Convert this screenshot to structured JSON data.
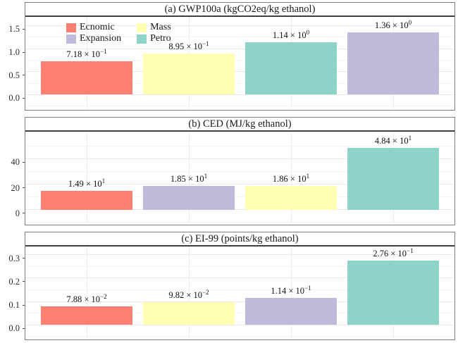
{
  "figure": {
    "background": "#ffffff",
    "panel_border_color": "#7e7e7e",
    "strip_rule_color": "#3f3f3f",
    "grid_major_color": "#e9e9e9",
    "grid_minor_color": "#f4f4f4",
    "text_color": "#1a1a1a"
  },
  "legend": {
    "position": "top-left-inside-panel-a",
    "items": [
      {
        "label": "Ecnomic",
        "color": "#FB8072"
      },
      {
        "label": "Expansion",
        "color": "#BEBADA"
      },
      {
        "label": "Mass",
        "color": "#FFFFB3"
      },
      {
        "label": "Petro",
        "color": "#8DD3C7"
      }
    ]
  },
  "chart_data": [
    {
      "type": "bar",
      "title": "(a) GWP100a (kgCO2eq/kg ethanol)",
      "ylabel": "",
      "xlabel": "",
      "grid": true,
      "legend_visible": true,
      "ylim": [
        -0.3,
        1.69
      ],
      "yticks": [
        0.0,
        0.5,
        1.0,
        1.5
      ],
      "ytick_labels": [
        "0.0",
        "0.5",
        "1.0",
        "1.5"
      ],
      "bars": [
        {
          "name": "Ecnomic",
          "value": 0.718,
          "color": "#FB8072",
          "label_mantissa": "7.18",
          "label_exp": "−1"
        },
        {
          "name": "Mass",
          "value": 0.895,
          "color": "#FFFFB3",
          "label_mantissa": "8.95",
          "label_exp": "−1"
        },
        {
          "name": "Petro",
          "value": 1.14,
          "color": "#8DD3C7",
          "label_mantissa": "1.14",
          "label_exp": "0"
        },
        {
          "name": "Expansion",
          "value": 1.36,
          "color": "#BEBADA",
          "label_mantissa": "1.36",
          "label_exp": "0"
        }
      ]
    },
    {
      "type": "bar",
      "title": "(b) CED (MJ/kg ethanol)",
      "ylabel": "",
      "xlabel": "",
      "grid": true,
      "legend_visible": false,
      "ylim": [
        -10.7,
        61.3
      ],
      "yticks": [
        0,
        20,
        40
      ],
      "ytick_labels": [
        "0",
        "20",
        "40"
      ],
      "bars": [
        {
          "name": "Ecnomic",
          "value": 14.9,
          "color": "#FB8072",
          "label_mantissa": "1.49",
          "label_exp": "1"
        },
        {
          "name": "Expansion",
          "value": 18.5,
          "color": "#BEBADA",
          "label_mantissa": "1.85",
          "label_exp": "1"
        },
        {
          "name": "Mass",
          "value": 18.6,
          "color": "#FFFFB3",
          "label_mantissa": "1.86",
          "label_exp": "1"
        },
        {
          "name": "Petro",
          "value": 48.4,
          "color": "#8DD3C7",
          "label_mantissa": "4.84",
          "label_exp": "1"
        }
      ]
    },
    {
      "type": "bar",
      "title": "(c) EI-99 (points/kg ethanol)",
      "ylabel": "",
      "xlabel": "",
      "grid": true,
      "legend_visible": false,
      "ylim": [
        -0.057,
        0.336
      ],
      "yticks": [
        0.0,
        0.1,
        0.2,
        0.3
      ],
      "ytick_labels": [
        "0.0",
        "0.1",
        "0.2",
        "0.3"
      ],
      "bars": [
        {
          "name": "Ecnomic",
          "value": 0.0788,
          "color": "#FB8072",
          "label_mantissa": "7.88",
          "label_exp": "−2"
        },
        {
          "name": "Mass",
          "value": 0.0982,
          "color": "#FFFFB3",
          "label_mantissa": "9.82",
          "label_exp": "−2"
        },
        {
          "name": "Expansion",
          "value": 0.114,
          "color": "#BEBADA",
          "label_mantissa": "1.14",
          "label_exp": "−1"
        },
        {
          "name": "Petro",
          "value": 0.276,
          "color": "#8DD3C7",
          "label_mantissa": "2.76",
          "label_exp": "−1"
        }
      ]
    }
  ]
}
